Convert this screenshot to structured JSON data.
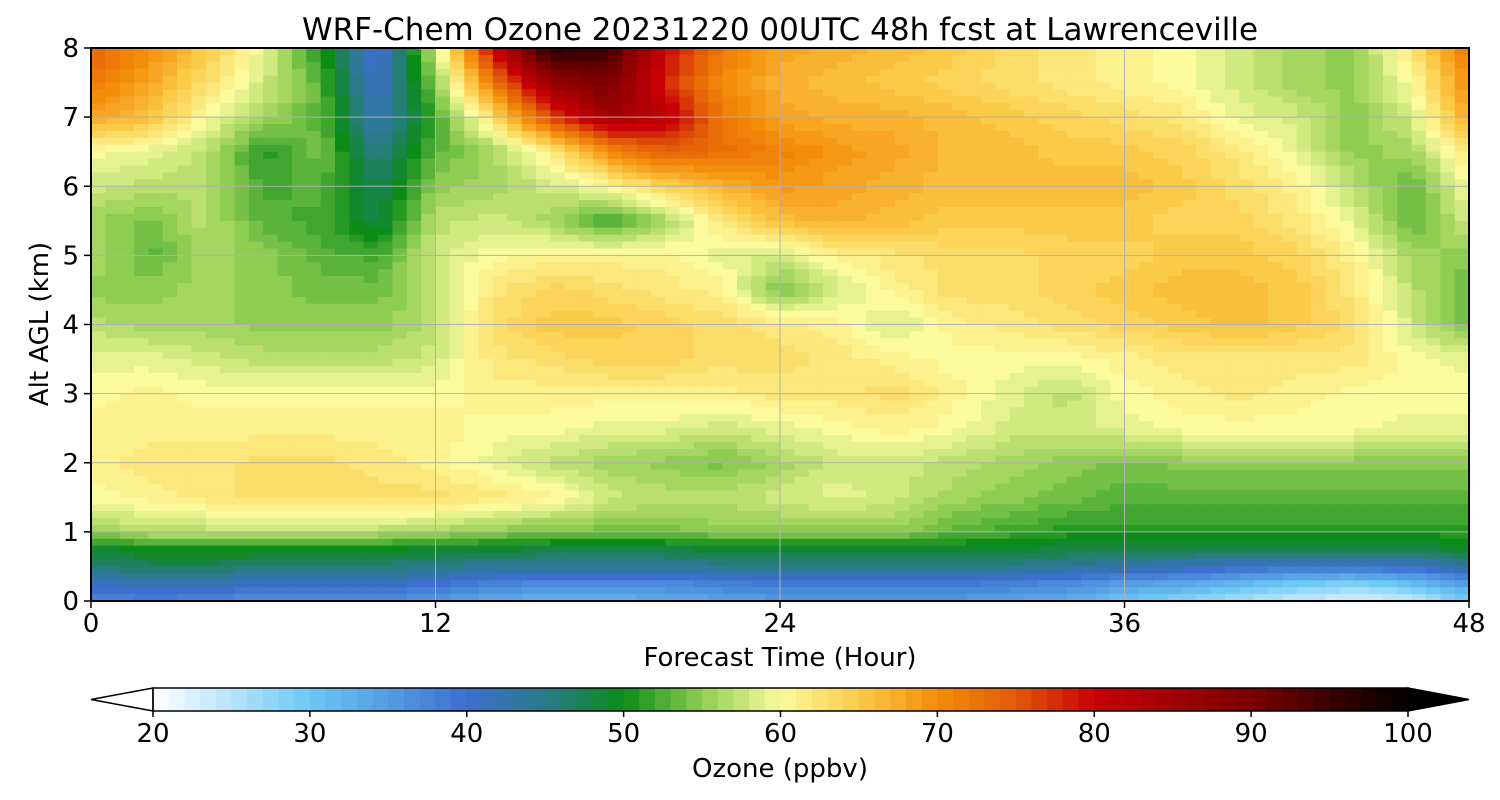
{
  "chart_data": {
    "type": "heatmap",
    "title": "WRF-Chem Ozone  20231220 00UTC 48h fcst at Lawrenceville",
    "xlabel": "Forecast Time (Hour)",
    "ylabel": "Alt AGL (km)",
    "xlim": [
      0,
      48
    ],
    "ylim": [
      0,
      8
    ],
    "x_ticks": [
      0,
      12,
      24,
      36,
      48
    ],
    "y_ticks": [
      0,
      1,
      2,
      3,
      4,
      5,
      6,
      7,
      8
    ],
    "x_tick_labels": [
      "0",
      "12",
      "24",
      "36",
      "48"
    ],
    "y_tick_labels": [
      "0",
      "1",
      "2",
      "3",
      "4",
      "5",
      "6",
      "7",
      "8"
    ],
    "grid": true,
    "x": [
      0,
      2,
      4,
      6,
      8,
      10,
      12,
      14,
      16,
      18,
      20,
      22,
      24,
      26,
      28,
      30,
      32,
      34,
      36,
      38,
      40,
      42,
      44,
      46,
      48
    ],
    "y": [
      0,
      0.25,
      0.5,
      0.75,
      1,
      1.5,
      2,
      2.5,
      3,
      3.5,
      4,
      4.5,
      5,
      5.5,
      6,
      6.5,
      7,
      7.5,
      8
    ],
    "z": [
      [
        37,
        38,
        37,
        36,
        36,
        36,
        35,
        33,
        32,
        32,
        33,
        34,
        35,
        35,
        35,
        35,
        34,
        33,
        30,
        28,
        26,
        24,
        22,
        24,
        30
      ],
      [
        41,
        42,
        42,
        41,
        41,
        41,
        40,
        38,
        37,
        37,
        37,
        38,
        39,
        39,
        39,
        39,
        38,
        37,
        35,
        34,
        32,
        30,
        29,
        31,
        35
      ],
      [
        46,
        47,
        47,
        46,
        46,
        46,
        45,
        44,
        44,
        44,
        44,
        45,
        45,
        45,
        45,
        45,
        45,
        44,
        43,
        42,
        41,
        40,
        40,
        41,
        44
      ],
      [
        49,
        50,
        50,
        50,
        50,
        50,
        49,
        49,
        48,
        48,
        48,
        49,
        49,
        49,
        49,
        49,
        49,
        48,
        48,
        48,
        48,
        48,
        48,
        48,
        49
      ],
      [
        55,
        57,
        57,
        57,
        57,
        57,
        56,
        55,
        54,
        54,
        54,
        55,
        55,
        55,
        55,
        53,
        52,
        51,
        51,
        51,
        51,
        51,
        51,
        51,
        51
      ],
      [
        60,
        61,
        62,
        63,
        63,
        63,
        63,
        62,
        61,
        58,
        57,
        57,
        58,
        59,
        58,
        56,
        55,
        54,
        53,
        53,
        53,
        53,
        53,
        53,
        53
      ],
      [
        61,
        62,
        62,
        63,
        63,
        62,
        61,
        59,
        57,
        56,
        55,
        54,
        56,
        58,
        58,
        57,
        56,
        55,
        54,
        55,
        55,
        55,
        55,
        55,
        55
      ],
      [
        61,
        61,
        61,
        61,
        61,
        61,
        61,
        60,
        60,
        59,
        59,
        58,
        59,
        60,
        61,
        60,
        58,
        58,
        59,
        60,
        60,
        60,
        60,
        59,
        59
      ],
      [
        60,
        61,
        60,
        60,
        60,
        60,
        60,
        61,
        61,
        61,
        61,
        61,
        62,
        62,
        63,
        61,
        59,
        57,
        60,
        61,
        62,
        61,
        60,
        60,
        60
      ],
      [
        59,
        59,
        58,
        57,
        57,
        57,
        58,
        62,
        63,
        64,
        64,
        63,
        63,
        62,
        61,
        60,
        60,
        60,
        61,
        62,
        62,
        62,
        62,
        60,
        59
      ],
      [
        57,
        56,
        56,
        55,
        55,
        55,
        57,
        63,
        65,
        65,
        64,
        63,
        62,
        61,
        58,
        61,
        62,
        63,
        64,
        65,
        66,
        65,
        63,
        58,
        54
      ],
      [
        55,
        55,
        56,
        55,
        54,
        54,
        57,
        62,
        64,
        63,
        62,
        61,
        54,
        58,
        61,
        63,
        63,
        64,
        65,
        66,
        66,
        65,
        62,
        57,
        53
      ],
      [
        57,
        53,
        56,
        55,
        53,
        52,
        58,
        60,
        61,
        61,
        61,
        59,
        58,
        61,
        62,
        63,
        63,
        64,
        64,
        65,
        65,
        64,
        61,
        56,
        55
      ],
      [
        56,
        54,
        57,
        53,
        52,
        48,
        57,
        58,
        56,
        52,
        56,
        62,
        66,
        67,
        66,
        65,
        65,
        65,
        65,
        64,
        64,
        62,
        59,
        53,
        58
      ],
      [
        58,
        57,
        57,
        52,
        53,
        47,
        55,
        56,
        58,
        60,
        64,
        67,
        69,
        68,
        67,
        66,
        66,
        66,
        66,
        65,
        63,
        61,
        57,
        53,
        60
      ],
      [
        60,
        59,
        57,
        51,
        54,
        45,
        53,
        56,
        61,
        70,
        74,
        73,
        71,
        69,
        68,
        66,
        66,
        65,
        65,
        64,
        62,
        59,
        55,
        56,
        62
      ],
      [
        68,
        66,
        60,
        56,
        53,
        42,
        52,
        63,
        76,
        85,
        82,
        72,
        68,
        67,
        67,
        66,
        65,
        64,
        63,
        62,
        59,
        58,
        55,
        58,
        68
      ],
      [
        72,
        68,
        63,
        58,
        53,
        40,
        55,
        72,
        86,
        90,
        78,
        70,
        67,
        66,
        65,
        64,
        63,
        62,
        61,
        60,
        58,
        56,
        55,
        60,
        70
      ],
      [
        74,
        70,
        65,
        59,
        51,
        39,
        58,
        80,
        97,
        95,
        80,
        72,
        68,
        67,
        66,
        65,
        63,
        62,
        61,
        60,
        58,
        56,
        55,
        62,
        72
      ]
    ],
    "colorbar": {
      "label": "Ozone  (ppbv)",
      "min": 20,
      "max": 100,
      "ticks": [
        20,
        30,
        40,
        50,
        60,
        70,
        80,
        90,
        100
      ],
      "tick_labels": [
        "20",
        "30",
        "40",
        "50",
        "60",
        "70",
        "80",
        "90",
        "100"
      ],
      "extend": "both",
      "orientation": "horizontal",
      "placement": "bottom"
    },
    "colormap_stops": [
      {
        "v": 20,
        "c": "#ffffff"
      },
      {
        "v": 30,
        "c": "#6cc8f5"
      },
      {
        "v": 40,
        "c": "#3c6fcf"
      },
      {
        "v": 45,
        "c": "#2a7a8a"
      },
      {
        "v": 50,
        "c": "#0b8c17"
      },
      {
        "v": 55,
        "c": "#8fcd52"
      },
      {
        "v": 60,
        "c": "#fbfb9e"
      },
      {
        "v": 65,
        "c": "#fbca48"
      },
      {
        "v": 70,
        "c": "#f48d0a"
      },
      {
        "v": 75,
        "c": "#e25a08"
      },
      {
        "v": 80,
        "c": "#c80006"
      },
      {
        "v": 90,
        "c": "#7a0000"
      },
      {
        "v": 100,
        "c": "#000000"
      }
    ]
  }
}
